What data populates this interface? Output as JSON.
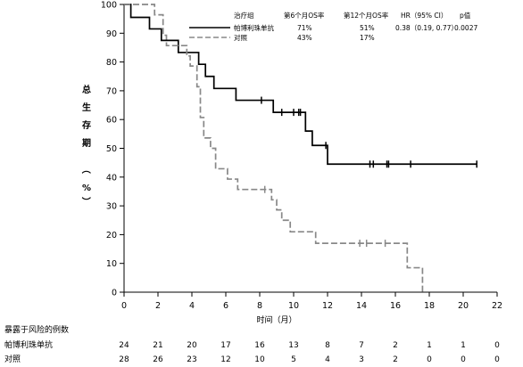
{
  "chart_data": {
    "type": "line",
    "title": "",
    "ylabel": "总生存期（%）",
    "xlabel": "时间（月）",
    "xlim": [
      0,
      22
    ],
    "ylim": [
      0,
      100
    ],
    "x_ticks": [
      0,
      2,
      4,
      6,
      8,
      10,
      12,
      14,
      16,
      18,
      20,
      22
    ],
    "y_ticks": [
      0,
      10,
      20,
      30,
      40,
      50,
      60,
      70,
      80,
      90,
      100
    ],
    "grid": false,
    "legend": {
      "placement": "top-right",
      "header": {
        "group": "治疗组",
        "os6": "第6个月OS率",
        "os12": "第12个月OS率",
        "hr": "HR（95% CI）",
        "p": "p值"
      },
      "rows": [
        {
          "name": "帕博利珠单抗",
          "os6": "71%",
          "os12": "51%",
          "hr": "0.38（0.19, 0.77）",
          "p": "0.0027"
        },
        {
          "name": "对照",
          "os6": "43%",
          "os12": "17%",
          "hr": "",
          "p": ""
        }
      ]
    },
    "series": [
      {
        "name": "帕博利珠单抗",
        "color": "#000000",
        "dash": "solid",
        "steps": [
          [
            0,
            100
          ],
          [
            0.4,
            95.5
          ],
          [
            1.5,
            91.5
          ],
          [
            2.2,
            87.5
          ],
          [
            3.2,
            83.3
          ],
          [
            4.4,
            79.2
          ],
          [
            4.8,
            75
          ],
          [
            5.3,
            70.8
          ],
          [
            6.6,
            66.7
          ],
          [
            8.8,
            62.5
          ],
          [
            10.7,
            56
          ],
          [
            11.1,
            51
          ],
          [
            12.0,
            44.5
          ],
          [
            20.8,
            44.5
          ]
        ],
        "censors": [
          [
            8.1,
            66.7
          ],
          [
            9.3,
            62.5
          ],
          [
            10.0,
            62.5
          ],
          [
            10.3,
            62.5
          ],
          [
            10.4,
            62.5
          ],
          [
            11.9,
            51
          ],
          [
            14.5,
            44.5
          ],
          [
            14.7,
            44.5
          ],
          [
            15.5,
            44.5
          ],
          [
            15.6,
            44.5
          ],
          [
            16.9,
            44.5
          ],
          [
            20.8,
            44.5
          ]
        ]
      },
      {
        "name": "对照",
        "color": "#888888",
        "dash": "dashed",
        "steps": [
          [
            0,
            100
          ],
          [
            1.8,
            96.4
          ],
          [
            2.3,
            89.3
          ],
          [
            2.5,
            85.7
          ],
          [
            3.7,
            82.1
          ],
          [
            3.9,
            78.6
          ],
          [
            4.3,
            71.4
          ],
          [
            4.5,
            60.7
          ],
          [
            4.7,
            53.6
          ],
          [
            5.1,
            50
          ],
          [
            5.4,
            42.9
          ],
          [
            6.1,
            39.3
          ],
          [
            6.7,
            35.7
          ],
          [
            8.7,
            32.1
          ],
          [
            9.0,
            28.6
          ],
          [
            9.3,
            25
          ],
          [
            9.8,
            21
          ],
          [
            11.3,
            17
          ],
          [
            16.7,
            8.5
          ],
          [
            17.6,
            0
          ]
        ],
        "censors": [
          [
            8.3,
            35.7
          ],
          [
            13.9,
            17
          ],
          [
            14.3,
            17
          ],
          [
            15.4,
            17
          ]
        ]
      }
    ],
    "risk_table": {
      "title": "暴露于风险的例数",
      "times": [
        0,
        2,
        4,
        6,
        8,
        10,
        12,
        14,
        16,
        18,
        20,
        22
      ],
      "rows": [
        {
          "name": "帕博利珠单抗",
          "values": [
            24,
            21,
            20,
            17,
            16,
            13,
            8,
            7,
            2,
            1,
            1,
            0
          ]
        },
        {
          "name": "对照",
          "values": [
            28,
            26,
            23,
            12,
            10,
            5,
            4,
            3,
            2,
            0,
            0,
            0
          ]
        }
      ]
    }
  }
}
